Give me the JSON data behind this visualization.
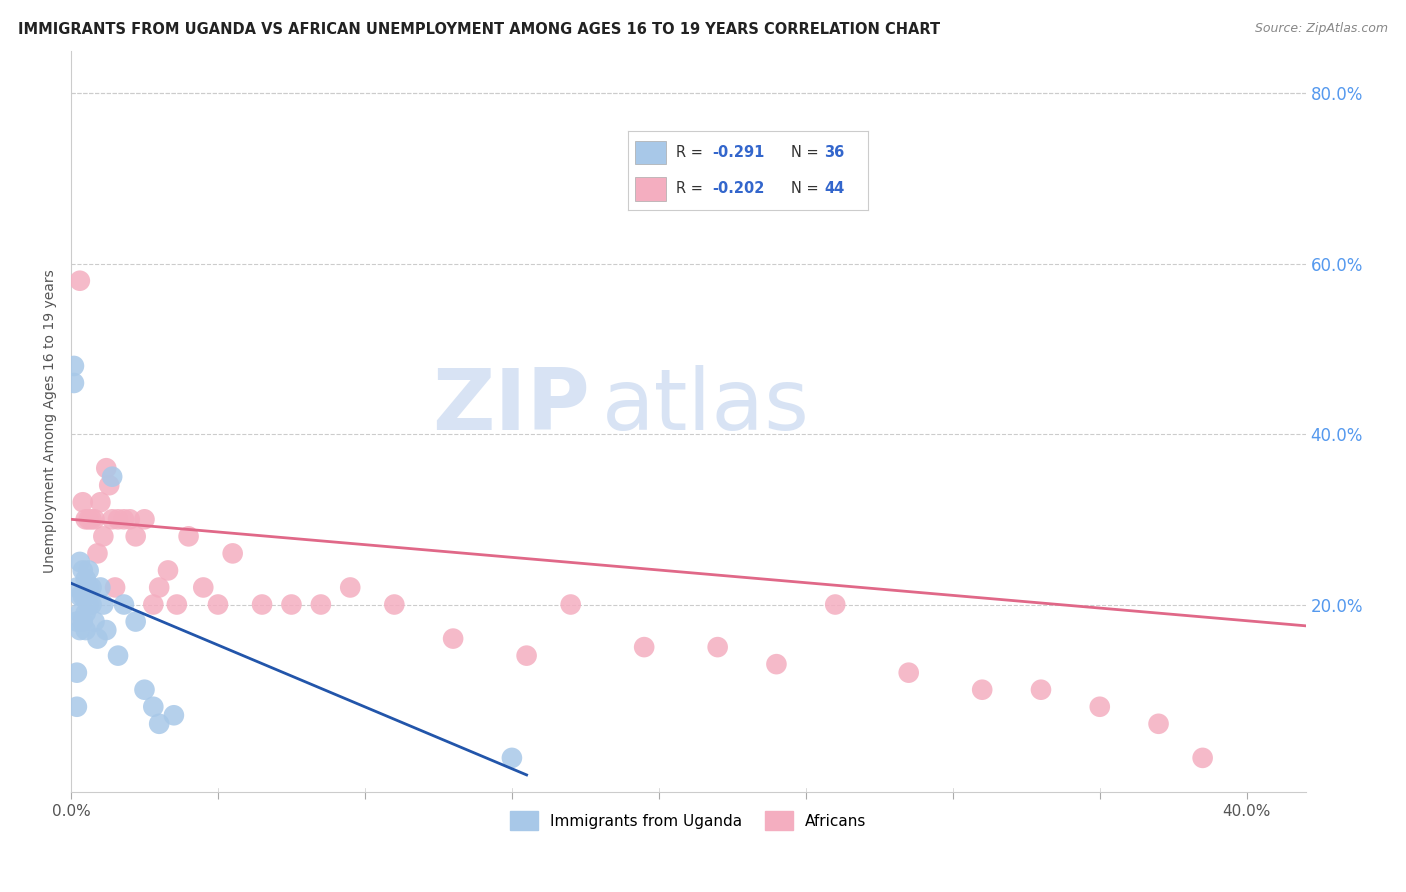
{
  "title": "IMMIGRANTS FROM UGANDA VS AFRICAN UNEMPLOYMENT AMONG AGES 16 TO 19 YEARS CORRELATION CHART",
  "source": "Source: ZipAtlas.com",
  "ylabel": "Unemployment Among Ages 16 to 19 years",
  "xlim": [
    0.0,
    0.42
  ],
  "ylim": [
    -0.02,
    0.85
  ],
  "xticks": [
    0.0,
    0.05,
    0.1,
    0.15,
    0.2,
    0.25,
    0.3,
    0.35,
    0.4
  ],
  "xtick_labels": [
    "0.0%",
    "",
    "",
    "",
    "",
    "",
    "",
    "",
    "40.0%"
  ],
  "yticks_right": [
    0.2,
    0.4,
    0.6,
    0.8
  ],
  "ytick_labels_right": [
    "20.0%",
    "40.0%",
    "60.0%",
    "80.0%"
  ],
  "series1_label": "Immigrants from Uganda",
  "series2_label": "Africans",
  "series1_color": "#a8c8e8",
  "series2_color": "#f4aec0",
  "series1_line_color": "#2255aa",
  "series2_line_color": "#e06888",
  "watermark_zip": "ZIP",
  "watermark_atlas": "atlas",
  "background_color": "#ffffff",
  "blue_x": [
    0.001,
    0.001,
    0.002,
    0.002,
    0.002,
    0.002,
    0.003,
    0.003,
    0.003,
    0.003,
    0.004,
    0.004,
    0.004,
    0.005,
    0.005,
    0.005,
    0.005,
    0.006,
    0.006,
    0.006,
    0.007,
    0.007,
    0.008,
    0.009,
    0.01,
    0.011,
    0.012,
    0.014,
    0.016,
    0.018,
    0.022,
    0.025,
    0.028,
    0.03,
    0.035,
    0.15
  ],
  "blue_y": [
    0.46,
    0.48,
    0.22,
    0.18,
    0.12,
    0.08,
    0.25,
    0.21,
    0.19,
    0.17,
    0.24,
    0.21,
    0.18,
    0.23,
    0.21,
    0.19,
    0.17,
    0.24,
    0.22,
    0.2,
    0.22,
    0.2,
    0.18,
    0.16,
    0.22,
    0.2,
    0.17,
    0.35,
    0.14,
    0.2,
    0.18,
    0.1,
    0.08,
    0.06,
    0.07,
    0.02
  ],
  "pink_x": [
    0.003,
    0.004,
    0.005,
    0.006,
    0.007,
    0.008,
    0.009,
    0.01,
    0.011,
    0.012,
    0.013,
    0.014,
    0.015,
    0.016,
    0.018,
    0.02,
    0.022,
    0.025,
    0.028,
    0.03,
    0.033,
    0.036,
    0.04,
    0.045,
    0.05,
    0.055,
    0.065,
    0.075,
    0.085,
    0.095,
    0.11,
    0.13,
    0.155,
    0.17,
    0.195,
    0.22,
    0.24,
    0.26,
    0.285,
    0.31,
    0.33,
    0.35,
    0.37,
    0.385
  ],
  "pink_y": [
    0.58,
    0.32,
    0.3,
    0.3,
    0.3,
    0.3,
    0.26,
    0.32,
    0.28,
    0.36,
    0.34,
    0.3,
    0.22,
    0.3,
    0.3,
    0.3,
    0.28,
    0.3,
    0.2,
    0.22,
    0.24,
    0.2,
    0.28,
    0.22,
    0.2,
    0.26,
    0.2,
    0.2,
    0.2,
    0.22,
    0.2,
    0.16,
    0.14,
    0.2,
    0.15,
    0.15,
    0.13,
    0.2,
    0.12,
    0.1,
    0.1,
    0.08,
    0.06,
    0.02
  ],
  "blue_trend_x": [
    0.0,
    0.155
  ],
  "blue_trend_y": [
    0.225,
    0.0
  ],
  "pink_trend_x": [
    0.0,
    0.42
  ],
  "pink_trend_y": [
    0.3,
    0.175
  ]
}
